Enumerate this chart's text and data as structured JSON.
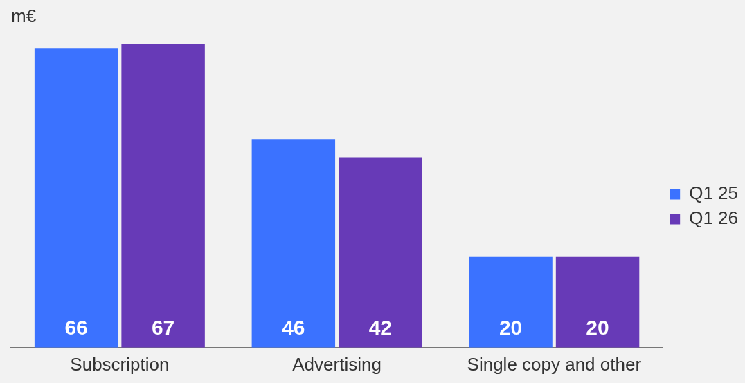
{
  "chart_data": {
    "type": "bar",
    "subtitle": "m€",
    "categories": [
      "Subscription",
      "Advertising",
      "Single copy and other"
    ],
    "series": [
      {
        "name": "Q1 25",
        "color": "#3b72ff",
        "values": [
          66,
          46,
          20
        ]
      },
      {
        "name": "Q1 26",
        "color": "#673ab7",
        "values": [
          67,
          42,
          20
        ]
      }
    ],
    "tick_labels": "x",
    "grid": false,
    "legend": "right",
    "data_labels": true
  }
}
